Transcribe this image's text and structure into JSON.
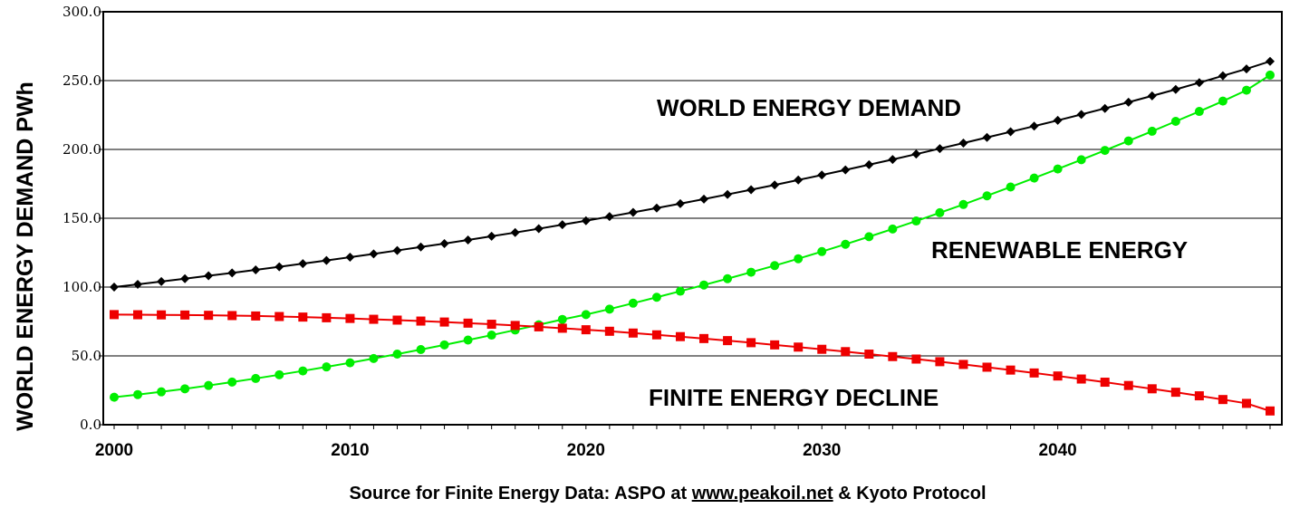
{
  "chart_data": {
    "type": "line",
    "ylabel": "WORLD ENERGY DEMAND PWh",
    "source_prefix": "Source for Finite Energy Data:  ASPO at ",
    "source_link": "www.peakoil.net",
    "source_suffix": " & Kyoto Protocol",
    "ylim": [
      0,
      300
    ],
    "yticks": [
      "0.0",
      "50.0",
      "100.0",
      "150.0",
      "200.0",
      "250.0",
      "300.0"
    ],
    "xticks": [
      "2000",
      "2010",
      "2020",
      "2030",
      "2040"
    ],
    "grid": "horizontal",
    "annotations": [
      "WORLD ENERGY DEMAND",
      "RENEWABLE ENERGY",
      "FINITE ENERGY DECLINE"
    ],
    "x": [
      2000,
      2001,
      2002,
      2003,
      2004,
      2005,
      2006,
      2007,
      2008,
      2009,
      2010,
      2011,
      2012,
      2013,
      2014,
      2015,
      2016,
      2017,
      2018,
      2019,
      2020,
      2021,
      2022,
      2023,
      2024,
      2025,
      2026,
      2027,
      2028,
      2029,
      2030,
      2031,
      2032,
      2033,
      2034,
      2035,
      2036,
      2037,
      2038,
      2039,
      2040,
      2041,
      2042,
      2043,
      2044,
      2045,
      2046,
      2047,
      2048,
      2049
    ],
    "series": [
      {
        "color": "#000000",
        "marker": "diamond",
        "values": [
          100.0,
          102.0,
          104.0,
          106.1,
          108.2,
          110.3,
          112.5,
          114.7,
          117.0,
          119.3,
          121.7,
          124.1,
          126.6,
          129.1,
          131.6,
          134.2,
          136.9,
          139.6,
          142.4,
          145.3,
          148.2,
          151.2,
          154.3,
          157.4,
          160.6,
          163.9,
          167.3,
          170.7,
          174.2,
          177.8,
          181.4,
          185.1,
          188.9,
          192.7,
          196.6,
          200.6,
          204.6,
          208.7,
          212.8,
          216.9,
          221.1,
          225.4,
          229.8,
          234.3,
          238.9,
          243.6,
          248.5,
          253.5,
          258.5,
          264.0
        ]
      },
      {
        "color": "#00ee00",
        "marker": "circle",
        "values": [
          20.0,
          21.9,
          23.9,
          26.1,
          28.5,
          31.0,
          33.6,
          36.3,
          39.1,
          42.0,
          45.0,
          48.1,
          51.3,
          54.6,
          58.0,
          61.5,
          65.1,
          68.8,
          72.6,
          76.5,
          80.0,
          84.0,
          88.3,
          92.6,
          97.0,
          101.5,
          106.1,
          110.8,
          115.6,
          120.6,
          125.8,
          131.1,
          136.6,
          142.2,
          148.0,
          154.0,
          160.0,
          166.3,
          172.7,
          179.2,
          185.8,
          192.5,
          199.3,
          206.2,
          213.2,
          220.4,
          227.6,
          235.1,
          243.0,
          254.0
        ]
      },
      {
        "color": "#ee0000",
        "marker": "square",
        "values": [
          80.0,
          79.9,
          79.8,
          79.7,
          79.5,
          79.3,
          79.0,
          78.6,
          78.2,
          77.7,
          77.2,
          76.6,
          76.0,
          75.3,
          74.6,
          73.8,
          73.0,
          72.1,
          71.1,
          70.1,
          69.0,
          67.9,
          66.6,
          65.3,
          64.0,
          62.6,
          61.1,
          59.6,
          58.0,
          56.4,
          54.8,
          53.1,
          51.3,
          49.5,
          47.7,
          45.8,
          43.8,
          41.8,
          39.7,
          37.6,
          35.4,
          33.2,
          30.9,
          28.5,
          26.1,
          23.6,
          21.0,
          18.3,
          15.5,
          10.0
        ]
      }
    ]
  }
}
